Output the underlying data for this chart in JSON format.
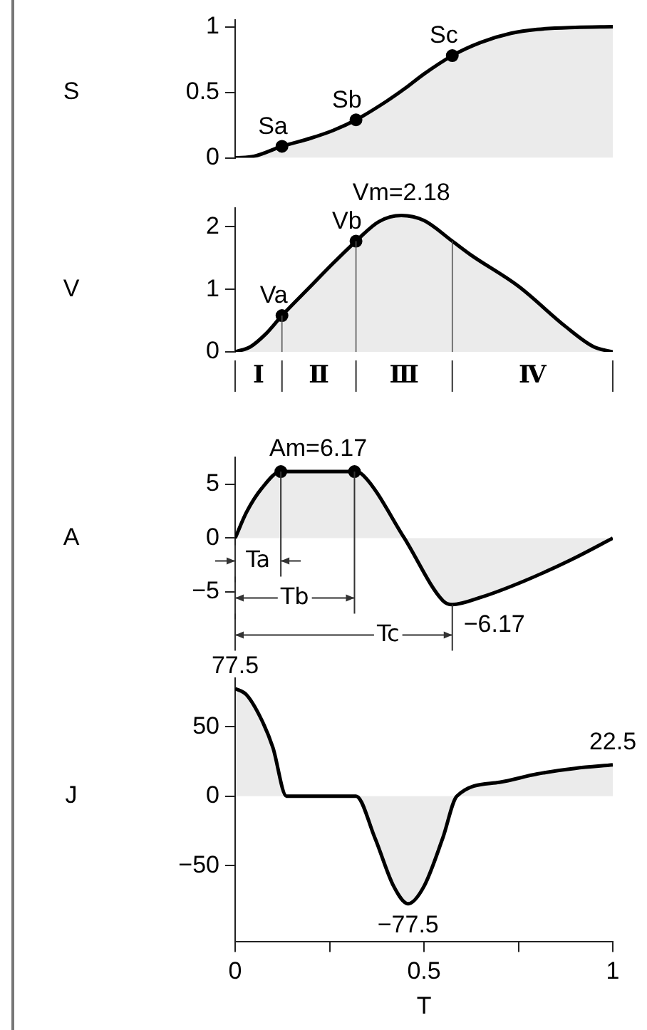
{
  "chart_data": [
    {
      "type": "area",
      "ylabel": "S",
      "xlim": [
        0,
        1
      ],
      "ylim": [
        0,
        1.05
      ],
      "yticks": [
        0,
        0.5,
        1
      ],
      "tick_labels": "y",
      "series": [
        {
          "color": "#000000",
          "x": [
            0,
            0.05,
            0.124,
            0.2,
            0.26,
            0.32,
            0.4,
            0.45,
            0.5,
            0.575,
            0.65,
            0.73,
            0.8,
            0.9,
            1
          ],
          "values": [
            0,
            0.012,
            0.088,
            0.15,
            0.21,
            0.29,
            0.43,
            0.53,
            0.64,
            0.78,
            0.88,
            0.95,
            0.98,
            0.995,
            1
          ]
        },
        {
          "type": "scatter",
          "color": "#000000",
          "x": [
            0.124,
            0.32,
            0.575
          ],
          "values": [
            0.088,
            0.29,
            0.78
          ]
        }
      ],
      "annotations": [
        {
          "text": "Sa",
          "x": 0.124,
          "y": 0.088
        },
        {
          "text": "Sb",
          "x": 0.32,
          "y": 0.29
        },
        {
          "text": "Sc",
          "x": 0.575,
          "y": 0.78
        }
      ]
    },
    {
      "type": "area",
      "ylabel": "V",
      "xlim": [
        0,
        1
      ],
      "ylim": [
        0,
        2.3
      ],
      "yticks": [
        0,
        1,
        2
      ],
      "tick_labels": "y",
      "series": [
        {
          "color": "#000000",
          "x": [
            0,
            0.04,
            0.08,
            0.124,
            0.2,
            0.26,
            0.32,
            0.38,
            0.44,
            0.5,
            0.575,
            0.624,
            0.75,
            0.876,
            0.95,
            1
          ],
          "values": [
            0,
            0.08,
            0.28,
            0.58,
            1.05,
            1.42,
            1.77,
            2.08,
            2.18,
            2.1,
            1.77,
            1.55,
            1.05,
            0.4,
            0.08,
            0
          ]
        },
        {
          "type": "scatter",
          "color": "#000000",
          "x": [
            0.124,
            0.32
          ],
          "values": [
            0.58,
            1.77
          ]
        }
      ],
      "annotations": [
        {
          "text": "Va",
          "x": 0.124,
          "y": 0.58
        },
        {
          "text": "Vb",
          "x": 0.32,
          "y": 1.77
        },
        {
          "text": "Vm=2.18",
          "x": 0.44,
          "y": 2.18
        },
        "Ⅰ",
        "Ⅱ",
        "Ⅲ",
        "Ⅳ"
      ],
      "ref_lines": [
        {
          "axis": "x",
          "value": 0.124
        },
        {
          "axis": "x",
          "value": 0.32
        },
        {
          "axis": "x",
          "value": 0.575
        }
      ]
    },
    {
      "type": "area",
      "ylabel": "A",
      "xlim": [
        0,
        1
      ],
      "ylim": [
        -9,
        7.5
      ],
      "yticks": [
        {
          "value": -5,
          "label": "−5"
        },
        0,
        5
      ],
      "tick_labels": "y",
      "series": [
        {
          "color": "#000000",
          "x": [
            0,
            0.03,
            0.07,
            0.121,
            0.316,
            0.34,
            0.448,
            0.55,
            0.575,
            0.65,
            0.764,
            0.89,
            1
          ],
          "values": [
            0,
            2.4,
            4.6,
            6.17,
            6.17,
            5.8,
            0,
            -5.8,
            -6.17,
            -5.5,
            -4,
            -2,
            0
          ]
        },
        {
          "type": "scatter",
          "color": "#000000",
          "x": [
            0.121,
            0.316
          ],
          "values": [
            6.17,
            6.17
          ]
        }
      ],
      "annotations": [
        {
          "text": "Am=6.17",
          "x": 0.22,
          "y": 6.17
        },
        {
          "text": "−6.17",
          "x": 0.575,
          "y": -6.17
        }
      ],
      "ref_lines": [
        {
          "axis": "x",
          "value": 0.121,
          "label": "Ta"
        },
        {
          "axis": "x",
          "value": 0.316,
          "label": "Tb"
        },
        {
          "axis": "x",
          "value": 0.575,
          "label": "Tc"
        }
      ]
    },
    {
      "type": "area",
      "ylabel": "J",
      "xlabel": "T",
      "xlim": [
        0,
        1
      ],
      "xticks": [
        0,
        {
          "value": 0.25,
          "label": null
        },
        0.5,
        {
          "value": 0.75,
          "label": null
        },
        1
      ],
      "ylim": [
        -105,
        85
      ],
      "yticks": [
        {
          "value": -50,
          "label": "−50"
        },
        0,
        50
      ],
      "series": [
        {
          "color": "#000000",
          "x": [
            0,
            0.03,
            0.07,
            0.1,
            0.136,
            0.32,
            0.37,
            0.42,
            0.458,
            0.5,
            0.55,
            0.587,
            0.7,
            0.8,
            0.9,
            1
          ],
          "values": [
            77.5,
            73,
            55,
            35,
            0,
            0,
            -30,
            -65,
            -77.5,
            -65,
            -30,
            0,
            10,
            16,
            20,
            22.5
          ]
        }
      ],
      "annotations": [
        {
          "text": "77.5",
          "x": 0,
          "y": 77.5
        },
        {
          "text": "−77.5",
          "x": 0.458,
          "y": -77.5
        },
        {
          "text": "22.5",
          "x": 1,
          "y": 22.5
        }
      ]
    }
  ]
}
